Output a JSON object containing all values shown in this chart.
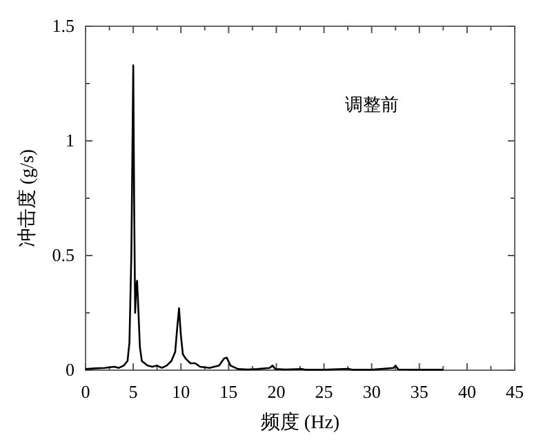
{
  "chart_data": {
    "type": "line",
    "xlabel": "频度 (Hz)",
    "ylabel": "冲击度 (g/s)",
    "annotations": [
      "调整前"
    ],
    "xlim": [
      0,
      45
    ],
    "ylim": [
      0,
      1.5
    ],
    "xticks": [
      0,
      {
        "value": 2.5,
        "label": null
      },
      5,
      {
        "value": 7.5,
        "label": null
      },
      10,
      {
        "value": 12.5,
        "label": null
      },
      15,
      {
        "value": 17.5,
        "label": null
      },
      20,
      {
        "value": 22.5,
        "label": null
      },
      25,
      {
        "value": 27.5,
        "label": null
      },
      30,
      {
        "value": 32.5,
        "label": null
      },
      35,
      {
        "value": 37.5,
        "label": null
      },
      40,
      {
        "value": 42.5,
        "label": null
      },
      45
    ],
    "yticks": [
      0,
      {
        "value": 0.25,
        "label": null
      },
      0.5,
      {
        "value": 0.75,
        "label": null
      },
      1.0,
      {
        "value": 1.25,
        "label": null
      },
      1.5
    ],
    "grid": false,
    "marker": "none",
    "line_style": "solid",
    "x": [
      0,
      1,
      2,
      3,
      3.5,
      4,
      4.4,
      4.6,
      4.8,
      4.9,
      5.0,
      5.1,
      5.2,
      5.3,
      5.4,
      5.5,
      5.7,
      5.9,
      6.5,
      7,
      7.5,
      8,
      8.5,
      9,
      9.4,
      9.6,
      9.8,
      10.0,
      10.2,
      10.5,
      11,
      11.5,
      12,
      13,
      13.5,
      14,
      14.5,
      14.8,
      15.2,
      16,
      17,
      18,
      19.3,
      19.6,
      19.9,
      21,
      22.7,
      23,
      25,
      27.5,
      28,
      30,
      32.3,
      32.5,
      32.8,
      35,
      37.5
    ],
    "series": [
      {
        "color": "#000000",
        "values": [
          0.005,
          0.008,
          0.01,
          0.015,
          0.01,
          0.02,
          0.04,
          0.12,
          0.5,
          0.9,
          1.33,
          0.7,
          0.25,
          0.35,
          0.39,
          0.3,
          0.1,
          0.04,
          0.02,
          0.015,
          0.02,
          0.01,
          0.02,
          0.04,
          0.08,
          0.18,
          0.27,
          0.15,
          0.07,
          0.05,
          0.03,
          0.03,
          0.015,
          0.01,
          0.015,
          0.02,
          0.05,
          0.055,
          0.02,
          0.005,
          0.003,
          0.005,
          0.01,
          0.02,
          0.005,
          0.003,
          0.005,
          0.002,
          0.002,
          0.006,
          0.002,
          0.002,
          0.01,
          0.02,
          0.003,
          0.002,
          0.002
        ]
      }
    ]
  }
}
